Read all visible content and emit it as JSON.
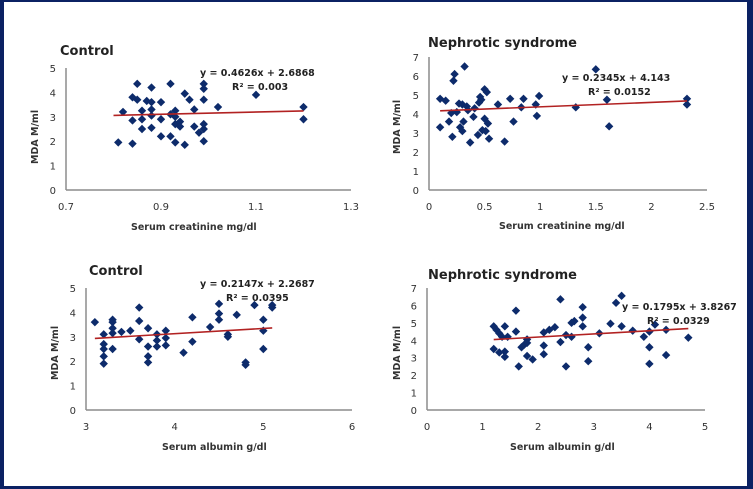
{
  "chart_data": [
    {
      "type": "scatter",
      "title": "Control",
      "xlabel": "Serum creatinine  mg/dl",
      "ylabel": "MDA M/ml",
      "xlim": [
        0.7,
        1.3
      ],
      "ylim": [
        0,
        5
      ],
      "xticks": [
        "0.7",
        "0.9",
        "1.1",
        "1.3"
      ],
      "xtick_values": [
        0.7,
        0.9,
        1.1,
        1.3
      ],
      "yticks": [
        "0",
        "1",
        "2",
        "3",
        "4",
        "5"
      ],
      "ytick_values": [
        0,
        1,
        2,
        3,
        4,
        5
      ],
      "grid": false,
      "trendline": {
        "slope": 0.4626,
        "intercept": 2.6868,
        "x_range": [
          0.8,
          1.2
        ],
        "equation": "y = 0.4626x + 2.6868",
        "r2": "R² = 0.003"
      },
      "points": [
        [
          0.81,
          1.95
        ],
        [
          0.82,
          3.2
        ],
        [
          0.84,
          1.9
        ],
        [
          0.84,
          2.85
        ],
        [
          0.84,
          3.8
        ],
        [
          0.85,
          4.35
        ],
        [
          0.85,
          3.7
        ],
        [
          0.86,
          2.5
        ],
        [
          0.86,
          3.25
        ],
        [
          0.86,
          2.9
        ],
        [
          0.87,
          3.65
        ],
        [
          0.88,
          3.6
        ],
        [
          0.88,
          3.3
        ],
        [
          0.88,
          3.05
        ],
        [
          0.88,
          4.2
        ],
        [
          0.88,
          2.55
        ],
        [
          0.9,
          2.2
        ],
        [
          0.9,
          2.9
        ],
        [
          0.9,
          3.6
        ],
        [
          0.92,
          4.35
        ],
        [
          0.92,
          3.1
        ],
        [
          0.92,
          2.2
        ],
        [
          0.93,
          3.25
        ],
        [
          0.93,
          3.0
        ],
        [
          0.93,
          1.95
        ],
        [
          0.93,
          2.7
        ],
        [
          0.94,
          2.8
        ],
        [
          0.94,
          2.6
        ],
        [
          0.95,
          1.85
        ],
        [
          0.95,
          3.95
        ],
        [
          0.96,
          3.7
        ],
        [
          0.97,
          3.3
        ],
        [
          0.97,
          2.6
        ],
        [
          0.98,
          2.35
        ],
        [
          0.99,
          2.5
        ],
        [
          0.99,
          2.7
        ],
        [
          0.99,
          4.35
        ],
        [
          0.99,
          4.15
        ],
        [
          0.99,
          3.7
        ],
        [
          0.99,
          2.0
        ],
        [
          1.02,
          3.4
        ],
        [
          1.1,
          3.9
        ],
        [
          1.2,
          3.4
        ],
        [
          1.2,
          2.9
        ]
      ]
    },
    {
      "type": "scatter",
      "title": "Nephrotic syndrome",
      "xlabel": "Serum creatinine  mg/dl",
      "ylabel": "MDA M/ml",
      "xlim": [
        0,
        2.5
      ],
      "ylim": [
        0,
        7
      ],
      "xticks": [
        "0",
        "0.5",
        "1",
        "1.5",
        "2",
        "2.5"
      ],
      "xtick_values": [
        0,
        0.5,
        1,
        1.5,
        2,
        2.5
      ],
      "yticks": [
        "0",
        "1",
        "2",
        "3",
        "4",
        "5",
        "6",
        "7"
      ],
      "ytick_values": [
        0,
        1,
        2,
        3,
        4,
        5,
        6,
        7
      ],
      "grid": false,
      "trendline": {
        "slope": 0.2345,
        "intercept": 4.143,
        "x_range": [
          0.1,
          2.32
        ],
        "equation": "y = 0.2345x + 4.143",
        "r2": "R² = 0.0152"
      },
      "points": [
        [
          0.1,
          4.8
        ],
        [
          0.1,
          3.3
        ],
        [
          0.15,
          4.7
        ],
        [
          0.18,
          3.6
        ],
        [
          0.2,
          4.05
        ],
        [
          0.21,
          2.8
        ],
        [
          0.22,
          5.75
        ],
        [
          0.23,
          6.1
        ],
        [
          0.25,
          4.1
        ],
        [
          0.27,
          4.55
        ],
        [
          0.28,
          3.3
        ],
        [
          0.3,
          3.1
        ],
        [
          0.3,
          4.5
        ],
        [
          0.31,
          3.6
        ],
        [
          0.32,
          6.5
        ],
        [
          0.34,
          4.4
        ],
        [
          0.35,
          4.2
        ],
        [
          0.37,
          2.5
        ],
        [
          0.4,
          3.85
        ],
        [
          0.41,
          4.3
        ],
        [
          0.44,
          2.9
        ],
        [
          0.45,
          4.6
        ],
        [
          0.46,
          4.9
        ],
        [
          0.47,
          4.75
        ],
        [
          0.48,
          3.15
        ],
        [
          0.5,
          3.75
        ],
        [
          0.5,
          5.3
        ],
        [
          0.51,
          3.1
        ],
        [
          0.52,
          5.15
        ],
        [
          0.53,
          3.5
        ],
        [
          0.54,
          2.7
        ],
        [
          0.62,
          4.5
        ],
        [
          0.68,
          2.55
        ],
        [
          0.73,
          4.8
        ],
        [
          0.76,
          3.6
        ],
        [
          0.83,
          4.35
        ],
        [
          0.85,
          4.8
        ],
        [
          0.96,
          4.5
        ],
        [
          0.97,
          3.9
        ],
        [
          0.99,
          4.95
        ],
        [
          1.32,
          4.35
        ],
        [
          1.5,
          6.35
        ],
        [
          1.6,
          4.75
        ],
        [
          1.62,
          3.35
        ],
        [
          2.32,
          4.8
        ],
        [
          2.32,
          4.5
        ]
      ]
    },
    {
      "type": "scatter",
      "title": "Control",
      "xlabel": "Serum albumin g/dl",
      "ylabel": "MDA  M/ml",
      "xlim": [
        3,
        6
      ],
      "ylim": [
        0,
        5
      ],
      "xticks": [
        "3",
        "4",
        "5",
        "6"
      ],
      "xtick_values": [
        3,
        4,
        5,
        6
      ],
      "yticks": [
        "0",
        "1",
        "2",
        "3",
        "4",
        "5"
      ],
      "ytick_values": [
        0,
        1,
        2,
        3,
        4,
        5
      ],
      "grid": false,
      "trendline": {
        "slope": 0.2147,
        "intercept": 2.2687,
        "x_range": [
          3.1,
          5.1
        ],
        "equation": "y = 0.2147x + 2.2687",
        "r2": "R² = 0.0395"
      },
      "points": [
        [
          3.1,
          3.6
        ],
        [
          3.2,
          3.1
        ],
        [
          3.2,
          2.7
        ],
        [
          3.2,
          2.5
        ],
        [
          3.2,
          2.2
        ],
        [
          3.2,
          1.9
        ],
        [
          3.3,
          3.7
        ],
        [
          3.3,
          3.6
        ],
        [
          3.3,
          3.35
        ],
        [
          3.3,
          3.15
        ],
        [
          3.3,
          2.5
        ],
        [
          3.4,
          3.2
        ],
        [
          3.5,
          3.25
        ],
        [
          3.6,
          4.2
        ],
        [
          3.6,
          3.65
        ],
        [
          3.6,
          2.9
        ],
        [
          3.7,
          3.35
        ],
        [
          3.7,
          2.6
        ],
        [
          3.7,
          2.2
        ],
        [
          3.7,
          1.95
        ],
        [
          3.8,
          3.1
        ],
        [
          3.8,
          2.85
        ],
        [
          3.8,
          2.6
        ],
        [
          3.9,
          3.25
        ],
        [
          3.9,
          2.95
        ],
        [
          3.9,
          2.65
        ],
        [
          4.1,
          2.35
        ],
        [
          4.2,
          3.8
        ],
        [
          4.2,
          2.8
        ],
        [
          4.4,
          3.4
        ],
        [
          4.5,
          4.35
        ],
        [
          4.5,
          3.95
        ],
        [
          4.5,
          3.7
        ],
        [
          4.6,
          3.1
        ],
        [
          4.6,
          3.0
        ],
        [
          4.7,
          3.9
        ],
        [
          4.8,
          1.95
        ],
        [
          4.8,
          1.85
        ],
        [
          4.9,
          4.3
        ],
        [
          5.0,
          3.7
        ],
        [
          5.0,
          3.25
        ],
        [
          5.0,
          2.5
        ],
        [
          5.1,
          4.3
        ],
        [
          5.1,
          4.2
        ]
      ]
    },
    {
      "type": "scatter",
      "title": "Nephrotic syndrome",
      "xlabel": "Serum albumin g/dl",
      "ylabel": "MDA M/ml",
      "xlim": [
        0,
        5
      ],
      "ylim": [
        0,
        7
      ],
      "xticks": [
        "0",
        "1",
        "2",
        "3",
        "4",
        "5"
      ],
      "xtick_values": [
        0,
        1,
        2,
        3,
        4,
        5
      ],
      "yticks": [
        "0",
        "1",
        "2",
        "3",
        "4",
        "5",
        "6",
        "7"
      ],
      "ytick_values": [
        0,
        1,
        2,
        3,
        4,
        5,
        6,
        7
      ],
      "grid": false,
      "trendline": {
        "slope": 0.1795,
        "intercept": 3.8267,
        "x_range": [
          1.2,
          4.7
        ],
        "equation": "y = 0.1795x + 3.8267",
        "r2": "R² = 0.0329"
      },
      "points": [
        [
          1.2,
          4.8
        ],
        [
          1.2,
          3.5
        ],
        [
          1.25,
          4.6
        ],
        [
          1.3,
          4.4
        ],
        [
          1.3,
          3.3
        ],
        [
          1.35,
          4.2
        ],
        [
          1.4,
          4.8
        ],
        [
          1.4,
          3.35
        ],
        [
          1.4,
          3.05
        ],
        [
          1.45,
          4.2
        ],
        [
          1.6,
          5.7
        ],
        [
          1.6,
          4.5
        ],
        [
          1.65,
          2.5
        ],
        [
          1.7,
          3.6
        ],
        [
          1.75,
          3.75
        ],
        [
          1.8,
          4.05
        ],
        [
          1.8,
          3.85
        ],
        [
          1.8,
          3.1
        ],
        [
          1.9,
          2.9
        ],
        [
          2.1,
          4.45
        ],
        [
          2.1,
          3.7
        ],
        [
          2.1,
          3.2
        ],
        [
          2.2,
          4.6
        ],
        [
          2.3,
          4.75
        ],
        [
          2.4,
          6.35
        ],
        [
          2.4,
          3.9
        ],
        [
          2.5,
          4.3
        ],
        [
          2.5,
          2.5
        ],
        [
          2.6,
          5.0
        ],
        [
          2.6,
          4.2
        ],
        [
          2.65,
          5.1
        ],
        [
          2.8,
          5.9
        ],
        [
          2.8,
          5.3
        ],
        [
          2.8,
          4.8
        ],
        [
          2.9,
          3.6
        ],
        [
          2.9,
          2.8
        ],
        [
          3.1,
          4.4
        ],
        [
          3.3,
          4.95
        ],
        [
          3.4,
          6.15
        ],
        [
          3.5,
          6.55
        ],
        [
          3.5,
          4.8
        ],
        [
          3.7,
          4.55
        ],
        [
          3.9,
          4.2
        ],
        [
          4.0,
          4.5
        ],
        [
          4.0,
          3.6
        ],
        [
          4.0,
          2.65
        ],
        [
          4.1,
          4.9
        ],
        [
          4.3,
          4.6
        ],
        [
          4.3,
          3.15
        ],
        [
          4.7,
          4.15
        ]
      ]
    }
  ],
  "style": {
    "marker_color": "#0d2b6b",
    "trendline_color": "#b22222",
    "axis_color": "#8c8c8c",
    "frame_color": "#0b2163"
  }
}
